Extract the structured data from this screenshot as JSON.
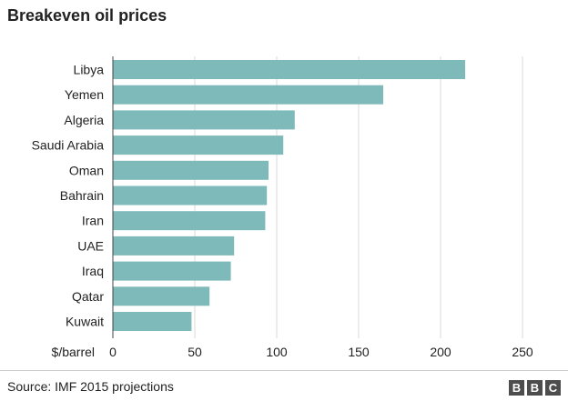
{
  "title": "Breakeven oil prices",
  "source": "Source: IMF 2015 projections",
  "logo": [
    "B",
    "B",
    "C"
  ],
  "colors": {
    "bar": "#7fbaba",
    "grid": "#d9d9d9",
    "axis": "#444444",
    "text": "#222222"
  },
  "chart_data": {
    "type": "bar",
    "orientation": "horizontal",
    "title": "Breakeven oil prices",
    "xlabel": "$/barrel",
    "categories": [
      "Libya",
      "Yemen",
      "Algeria",
      "Saudi Arabia",
      "Oman",
      "Bahrain",
      "Iran",
      "UAE",
      "Iraq",
      "Qatar",
      "Kuwait"
    ],
    "values": [
      215,
      165,
      111,
      104,
      95,
      94,
      93,
      74,
      72,
      59,
      48
    ],
    "xlim": [
      0,
      250
    ],
    "ticks": [
      0,
      50,
      100,
      150,
      200,
      250
    ],
    "grid": true
  }
}
